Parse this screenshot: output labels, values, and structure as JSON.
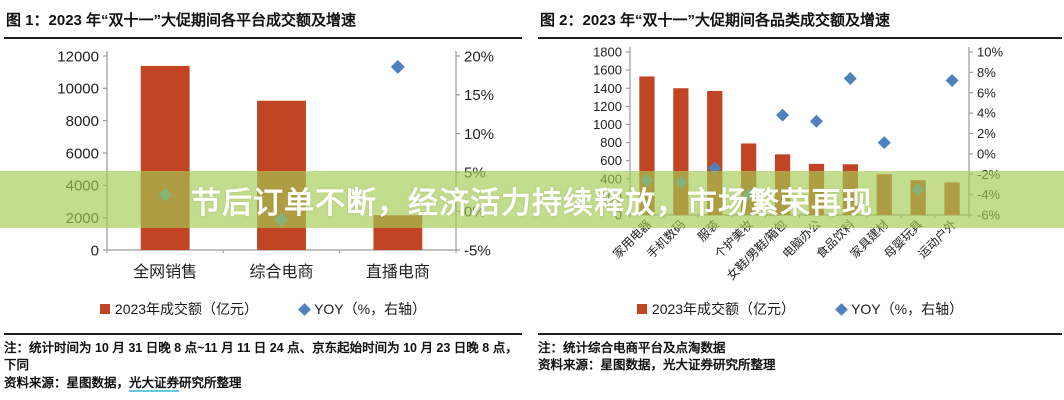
{
  "page": {
    "background": "#ffffff"
  },
  "overlay": {
    "text": "节后订单不断，经济活力持续释放，市场繁荣再现",
    "text_color": "#ffffff",
    "band_color": "rgba(164,204,84,0.66)"
  },
  "chart_data": [
    {
      "type": "bar",
      "title": "图 1：2023 年“双十一”大促期间各平台成交额及增速",
      "categories": [
        "全网销售",
        "综合电商",
        "直播电商"
      ],
      "series": [
        {
          "name": "2023年成交额（亿元）",
          "kind": "bar",
          "axis": "left",
          "color": "#c14524",
          "values": [
            11386,
            9235,
            2151
          ]
        },
        {
          "name": "YOY（%，右轴）",
          "kind": "scatter",
          "axis": "right",
          "color": "#4f81bd",
          "values": [
            2.1,
            -1.1,
            18.6
          ]
        }
      ],
      "left_axis": {
        "min": 0,
        "max": 12000,
        "step": 2000
      },
      "right_axis": {
        "min": -5,
        "max": 20,
        "step": 5,
        "suffix": "%"
      },
      "grid": false,
      "legend_position": "bottom",
      "note": "注：统计时间为 10 月 31 日晚 8 点~11 月 11 日 24 点、京东起始时间为 10 月 23 日晚 8 点，下同",
      "source_prefix": "资料来源：星图数据，",
      "source_link": "光大证券",
      "source_suffix": "研究所整理"
    },
    {
      "type": "bar",
      "title": "图 2：2023 年“双十一”大促期间各品类成交额及增速",
      "categories": [
        "家用电器",
        "手机数码",
        "服装",
        "个护美妆",
        "女鞋/男鞋/箱包",
        "电脑办公",
        "食品饮料",
        "家具建材",
        "母婴玩具",
        "运动户外"
      ],
      "series": [
        {
          "name": "2023年成交额（亿元）",
          "kind": "bar",
          "axis": "left",
          "color": "#c14524",
          "values": [
            1530,
            1400,
            1370,
            790,
            670,
            565,
            560,
            450,
            385,
            360
          ]
        },
        {
          "name": "YOY（%，右轴）",
          "kind": "scatter",
          "axis": "right",
          "color": "#4f81bd",
          "values": [
            -2.6,
            -2.8,
            -1.4,
            -4.0,
            3.8,
            3.2,
            7.4,
            1.1,
            -3.5,
            7.2
          ]
        }
      ],
      "left_axis": {
        "min": 0,
        "max": 1800,
        "step": 200
      },
      "right_axis": {
        "min": -6,
        "max": 10,
        "step": 2,
        "suffix": "%"
      },
      "grid": false,
      "legend_position": "bottom",
      "note": "注：统计综合电商平台及点淘数据",
      "source": "资料来源：星图数据，光大证券研究所整理"
    }
  ]
}
